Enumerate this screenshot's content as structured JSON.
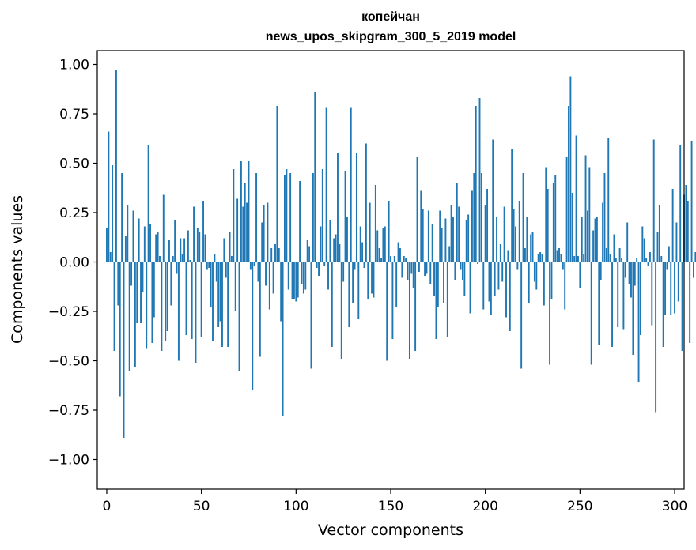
{
  "chart_data": {
    "type": "bar",
    "title": "копейчан",
    "subtitle": "news_upos_skipgram_300_5_2019 model",
    "xlabel": "Vector components",
    "ylabel": "Components values",
    "xlim": [
      -5,
      305
    ],
    "ylim": [
      -1.15,
      1.07
    ],
    "xticks": [
      0,
      50,
      100,
      150,
      200,
      250,
      300
    ],
    "yticks": [
      1.0,
      0.75,
      0.5,
      0.25,
      0.0,
      -0.25,
      -0.5,
      -0.75,
      -1.0
    ],
    "ytick_labels": [
      "1.00",
      "0.75",
      "0.50",
      "0.25",
      "0.00",
      "−0.25",
      "−0.50",
      "−0.75",
      "−1.00"
    ],
    "grid": false,
    "bar_color": "#1f77b4",
    "series": [
      {
        "name": "копейчан",
        "x_start": 0,
        "values": [
          0.17,
          0.66,
          0.05,
          0.49,
          -0.45,
          0.97,
          -0.22,
          -0.68,
          0.45,
          -0.89,
          0.13,
          0.29,
          -0.55,
          -0.12,
          0.26,
          -0.53,
          -0.31,
          0.22,
          -0.31,
          -0.15,
          0.18,
          -0.44,
          0.59,
          0.19,
          -0.41,
          -0.28,
          0.14,
          0.15,
          0.03,
          -0.45,
          0.34,
          -0.4,
          -0.35,
          0.11,
          -0.22,
          0.03,
          0.21,
          -0.06,
          -0.5,
          0.12,
          0.04,
          0.12,
          -0.37,
          0.16,
          0.01,
          -0.39,
          0.28,
          -0.51,
          0.17,
          0.15,
          -0.38,
          0.31,
          0.14,
          -0.04,
          -0.03,
          -0.23,
          -0.4,
          0.04,
          -0.1,
          -0.33,
          -0.3,
          -0.43,
          0.12,
          -0.08,
          -0.43,
          0.15,
          0.03,
          0.47,
          -0.25,
          0.32,
          -0.55,
          0.51,
          0.28,
          0.4,
          0.3,
          0.51,
          -0.04,
          -0.65,
          -0.02,
          0.45,
          -0.1,
          -0.48,
          0.2,
          0.29,
          -0.12,
          0.3,
          -0.24,
          0.07,
          -0.16,
          0.09,
          0.79,
          0.07,
          -0.3,
          -0.78,
          0.44,
          0.47,
          -0.14,
          0.45,
          -0.19,
          -0.19,
          -0.2,
          -0.18,
          0.41,
          -0.11,
          -0.16,
          -0.14,
          0.11,
          0.08,
          -0.54,
          0.45,
          0.86,
          -0.03,
          -0.07,
          0.18,
          0.47,
          -0.02,
          0.78,
          -0.14,
          0.21,
          -0.43,
          0.12,
          0.14,
          0.55,
          0.09,
          -0.49,
          -0.1,
          0.46,
          0.23,
          -0.33,
          0.78,
          -0.21,
          -0.04,
          0.55,
          -0.29,
          0.18,
          0.1,
          -0.03,
          0.6,
          -0.19,
          0.3,
          -0.16,
          -0.18,
          0.39,
          0.16,
          0.07,
          0.02,
          0.17,
          0.18,
          -0.5,
          0.31,
          0.03,
          -0.39,
          0.03,
          -0.23,
          0.1,
          0.07,
          -0.08,
          0.03,
          0.02,
          -0.09,
          -0.49,
          -0.06,
          -0.13,
          -0.45,
          0.53,
          -0.05,
          0.36,
          0.27,
          -0.07,
          -0.06,
          0.26,
          -0.11,
          0.19,
          -0.17,
          -0.39,
          -0.23,
          0.26,
          0.17,
          -0.21,
          0.22,
          -0.38,
          0.08,
          0.29,
          0.23,
          -0.09,
          0.4,
          0.28,
          -0.04,
          -0.09,
          -0.17,
          0.21,
          0.24,
          -0.26,
          0.36,
          0.45,
          0.79,
          -0.01,
          0.83,
          0.45,
          -0.24,
          0.29,
          0.37,
          -0.2,
          -0.27,
          0.62,
          -0.17,
          0.23,
          -0.14,
          0.09,
          -0.1,
          0.28,
          -0.28,
          0.06,
          -0.35,
          0.57,
          0.27,
          0.18,
          -0.04,
          0.31,
          -0.54,
          0.45,
          0.07,
          0.23,
          -0.21,
          0.14,
          0.15,
          -0.1,
          -0.14,
          0.04,
          0.05,
          0.04,
          -0.22,
          0.48,
          0.37,
          -0.52,
          -0.19,
          0.4,
          0.44,
          0.06,
          0.07,
          0.04,
          -0.04,
          -0.24,
          0.53,
          0.79,
          0.94,
          0.35,
          0.03,
          0.64,
          0.03,
          -0.13,
          0.23,
          0.04,
          0.54,
          0.26,
          0.48,
          -0.52,
          0.16,
          0.22,
          0.23,
          -0.42,
          -0.09,
          0.3,
          0.45,
          0.07,
          0.63,
          0.04,
          -0.43,
          0.14,
          0.02,
          -0.33,
          0.07,
          0.02,
          -0.34,
          -0.08,
          0.2,
          -0.11,
          -0.18,
          -0.47,
          -0.12,
          0.02,
          -0.61,
          -0.37,
          0.18,
          0.12,
          0.02,
          -0.02,
          0.05,
          -0.32,
          0.62,
          -0.76,
          0.15,
          0.29,
          0.03,
          -0.43,
          -0.27,
          -0.04,
          0.08,
          -0.27,
          0.37,
          -0.26,
          0.2,
          -0.2,
          0.59,
          -0.45,
          0.34,
          0.39,
          0.31,
          -0.41,
          0.61,
          -0.08,
          0.05,
          -0.12,
          0.05
        ]
      }
    ]
  }
}
